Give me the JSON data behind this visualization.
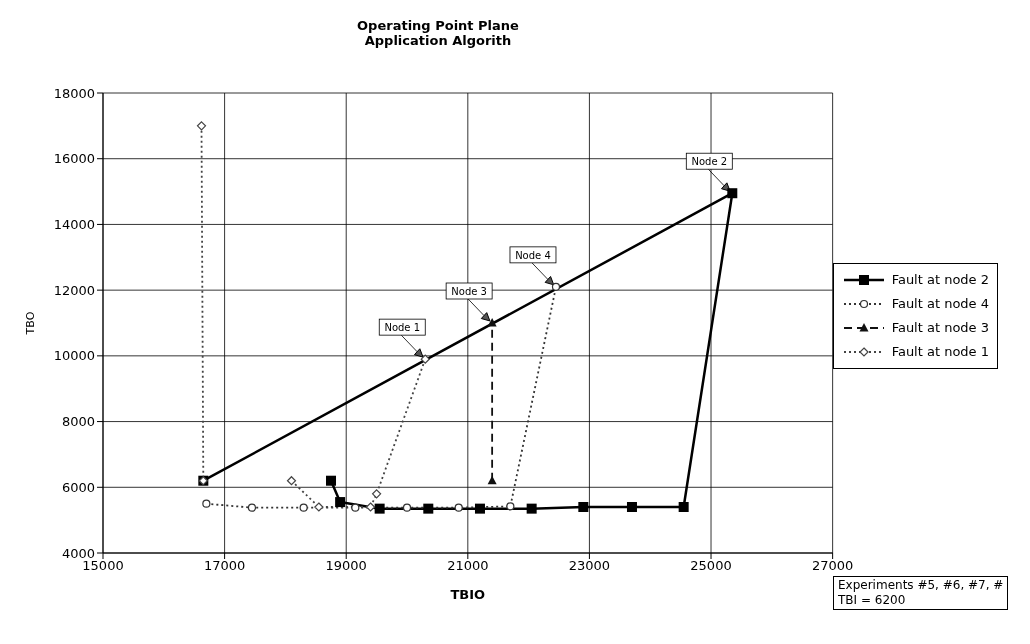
{
  "chart_data": {
    "type": "line",
    "title": "Operating Point Plane",
    "subtitle": "Application Algorith",
    "xlabel": "TBIO",
    "ylabel": "TBO",
    "xlim": [
      15000,
      27000
    ],
    "xticks": [
      15000,
      17000,
      19000,
      21000,
      23000,
      25000,
      27000
    ],
    "ylim": [
      4000,
      18000
    ],
    "yticks": [
      4000,
      6000,
      8000,
      10000,
      12000,
      14000,
      16000,
      18000
    ],
    "grid": true,
    "legend": "right",
    "series": [
      {
        "name": "Fault at node 2",
        "color": "#000000",
        "line_style": "solid",
        "marker": "square",
        "x": [
          18750,
          18900,
          19550,
          20350,
          21200,
          22050,
          22900,
          23700,
          24550,
          25350,
          16650
        ],
        "values": [
          6200,
          5550,
          5350,
          5350,
          5350,
          5350,
          5400,
          5400,
          5400,
          14950,
          6200
        ]
      },
      {
        "name": "Fault at node 4",
        "color": "#333333",
        "line_style": "dotted",
        "marker": "circle",
        "x": [
          16700,
          17450,
          18300,
          19150,
          20000,
          20850,
          21700,
          22450
        ],
        "values": [
          5500,
          5380,
          5380,
          5380,
          5380,
          5380,
          5420,
          12100
        ]
      },
      {
        "name": "Fault at node 3",
        "color": "#111111",
        "line_style": "dashed",
        "marker": "triangle",
        "x": [
          21400,
          21400
        ],
        "values": [
          6200,
          11000
        ]
      },
      {
        "name": "Fault at node 1",
        "color": "#444444",
        "line_style": "dotted",
        "marker": "diamond",
        "x": [
          16620,
          16650,
          17300,
          18100,
          18550,
          19400,
          19500,
          20300
        ],
        "values": [
          17000,
          6200,
          null,
          6200,
          5400,
          5400,
          5800,
          9900
        ]
      }
    ],
    "annotations": [
      {
        "text": "Node 1",
        "x": 20300,
        "y": 9900
      },
      {
        "text": "Node 3",
        "x": 21400,
        "y": 11000
      },
      {
        "text": "Node 4",
        "x": 22450,
        "y": 12100
      },
      {
        "text": "Node 2",
        "x": 25350,
        "y": 14950
      },
      "Experiments #5, #6, #7, #",
      "TBI = 6200"
    ]
  }
}
